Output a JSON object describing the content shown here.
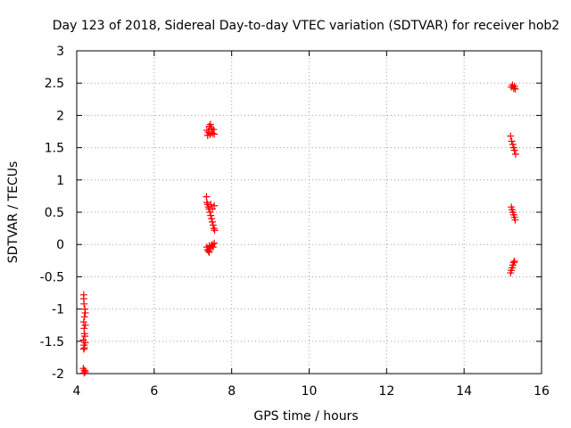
{
  "chart_data": {
    "type": "scatter",
    "title": "Day 123 of 2018, Sidereal Day-to-day VTEC variation (SDTVAR) for receiver hob2",
    "xlabel": "GPS time / hours",
    "ylabel": "SDTVAR / TECUs",
    "xlim": [
      4,
      16
    ],
    "ylim": [
      -2,
      3
    ],
    "xticks": [
      4,
      6,
      8,
      10,
      12,
      14,
      16
    ],
    "yticks": [
      -2,
      -1.5,
      -1,
      -0.5,
      0,
      0.5,
      1,
      1.5,
      2,
      2.5,
      3
    ],
    "xtick_labels": [
      "4",
      "6",
      "8",
      "10",
      "12",
      "14",
      "16"
    ],
    "ytick_labels": [
      "-2",
      "-1.5",
      "-1",
      "-0.5",
      "0",
      "0.5",
      "1",
      "1.5",
      "2",
      "2.5",
      "3"
    ],
    "grid": true,
    "marker": "+",
    "color": "#ff0000",
    "series": [
      {
        "name": "SDTVAR",
        "points": [
          [
            4.18,
            -0.78
          ],
          [
            4.18,
            -0.84
          ],
          [
            4.19,
            -0.92
          ],
          [
            4.21,
            -1.0
          ],
          [
            4.22,
            -1.06
          ],
          [
            4.2,
            -1.12
          ],
          [
            4.18,
            -1.2
          ],
          [
            4.22,
            -1.25
          ],
          [
            4.19,
            -1.3
          ],
          [
            4.2,
            -1.38
          ],
          [
            4.21,
            -1.42
          ],
          [
            4.17,
            -1.48
          ],
          [
            4.22,
            -1.52
          ],
          [
            4.19,
            -1.56
          ],
          [
            4.2,
            -1.6
          ],
          [
            4.18,
            -1.62
          ],
          [
            4.17,
            -1.92
          ],
          [
            4.2,
            -1.95
          ],
          [
            4.22,
            -1.97
          ],
          [
            4.19,
            -1.99
          ],
          [
            7.36,
            1.77
          ],
          [
            7.42,
            1.83
          ],
          [
            7.45,
            1.86
          ],
          [
            7.48,
            1.8
          ],
          [
            7.4,
            1.74
          ],
          [
            7.5,
            1.72
          ],
          [
            7.44,
            1.7
          ],
          [
            7.53,
            1.78
          ],
          [
            7.38,
            1.69
          ],
          [
            7.55,
            1.71
          ],
          [
            7.35,
            0.74
          ],
          [
            7.36,
            0.65
          ],
          [
            7.38,
            0.62
          ],
          [
            7.4,
            0.58
          ],
          [
            7.42,
            0.55
          ],
          [
            7.44,
            0.5
          ],
          [
            7.46,
            0.45
          ],
          [
            7.48,
            0.4
          ],
          [
            7.5,
            0.35
          ],
          [
            7.52,
            0.3
          ],
          [
            7.54,
            0.25
          ],
          [
            7.55,
            0.6
          ],
          [
            7.5,
            0.55
          ],
          [
            7.46,
            0.62
          ],
          [
            7.56,
            0.22
          ],
          [
            7.36,
            -0.04
          ],
          [
            7.38,
            -0.08
          ],
          [
            7.4,
            -0.1
          ],
          [
            7.42,
            -0.12
          ],
          [
            7.45,
            -0.06
          ],
          [
            7.48,
            -0.02
          ],
          [
            7.5,
            0.0
          ],
          [
            7.52,
            -0.04
          ],
          [
            7.55,
            0.02
          ],
          [
            7.42,
            -0.02
          ],
          [
            15.22,
            2.44
          ],
          [
            15.25,
            2.47
          ],
          [
            15.28,
            2.42
          ],
          [
            15.3,
            2.45
          ],
          [
            15.32,
            2.41
          ],
          [
            15.2,
            1.68
          ],
          [
            15.23,
            1.6
          ],
          [
            15.26,
            1.55
          ],
          [
            15.28,
            1.5
          ],
          [
            15.3,
            1.46
          ],
          [
            15.33,
            1.4
          ],
          [
            15.22,
            0.58
          ],
          [
            15.24,
            0.54
          ],
          [
            15.26,
            0.5
          ],
          [
            15.28,
            0.46
          ],
          [
            15.3,
            0.42
          ],
          [
            15.32,
            0.38
          ],
          [
            15.2,
            -0.44
          ],
          [
            15.22,
            -0.4
          ],
          [
            15.24,
            -0.36
          ],
          [
            15.26,
            -0.32
          ],
          [
            15.28,
            -0.28
          ],
          [
            15.3,
            -0.26
          ]
        ]
      }
    ]
  }
}
